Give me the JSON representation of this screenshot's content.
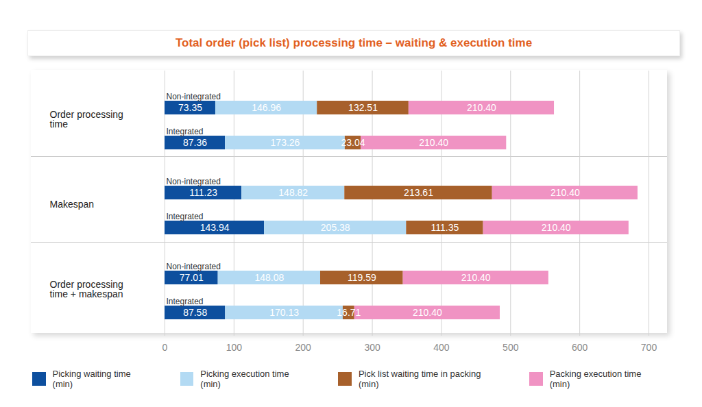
{
  "chart_data": {
    "type": "bar",
    "title": "Total order (pick list) processing time – waiting & execution time",
    "orientation": "horizontal",
    "stacked": true,
    "data_labels": true,
    "grid": true,
    "legend": "bottom",
    "groups": [
      "Order processing time",
      "Makespan",
      "Order processing time + makespan"
    ],
    "categories": [
      "Non-integrated",
      "Integrated",
      "Non-integrated",
      "Integrated",
      "Non-integrated",
      "Integrated"
    ],
    "xlim": [
      0,
      700
    ],
    "xticks": [
      0,
      100,
      200,
      300,
      400,
      500,
      600,
      700
    ],
    "series": [
      {
        "name": "Picking waiting time (min)",
        "color": "#0d4f9e",
        "values": [
          73.35,
          87.36,
          111.23,
          143.94,
          77.01,
          87.58
        ]
      },
      {
        "name": "Picking execution time (min)",
        "color": "#b3daf3",
        "values": [
          146.96,
          173.26,
          148.82,
          205.38,
          148.08,
          170.13
        ]
      },
      {
        "name": "Pick list waiting time in packing (min)",
        "color": "#a7602b",
        "values": [
          132.51,
          23.04,
          213.61,
          111.35,
          119.59,
          16.71
        ]
      },
      {
        "name": "Packing execution time (min)",
        "color": "#f093c3",
        "values": [
          210.4,
          210.4,
          210.4,
          210.4,
          210.4,
          210.4
        ],
        "value_labels": [
          "210.40",
          "210.40",
          "210.40",
          "210.40",
          "210.40",
          "210.40"
        ]
      }
    ]
  }
}
